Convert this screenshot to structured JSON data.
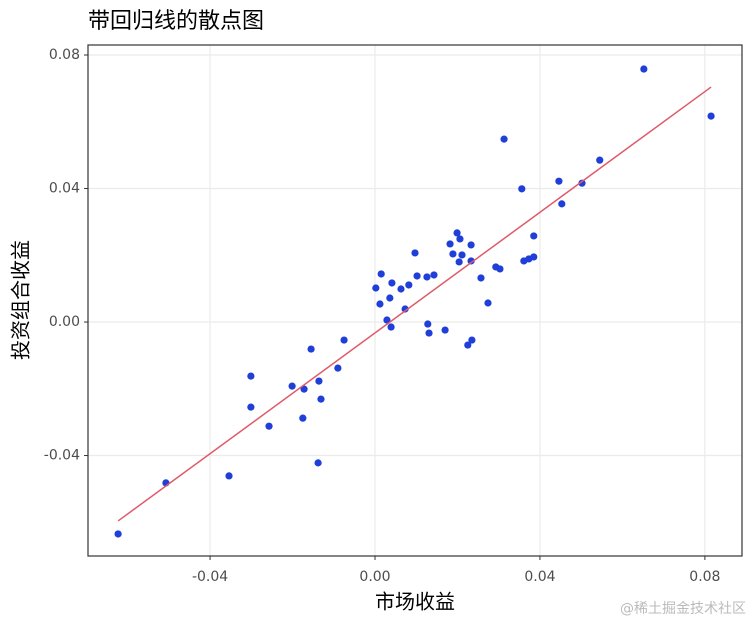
{
  "chart_data": {
    "type": "scatter",
    "title": "带回归线的散点图",
    "x_label": "市场收益",
    "y_label": "投资组合收益",
    "watermark": "@稀土掘金技术社区",
    "xlim": [
      -0.0696,
      0.089
    ],
    "ylim": [
      -0.0701,
      0.083
    ],
    "xticks": [
      -0.04,
      {
        "value": 0,
        "label": "0.00"
      },
      0.04,
      0.08
    ],
    "yticks": [
      -0.04,
      {
        "value": 0,
        "label": "0.00"
      },
      0.04,
      0.08
    ],
    "grid": true,
    "series": [
      {
        "color": "#1f3fd8",
        "x": [
          -0.0623,
          -0.0507,
          -0.0354,
          -0.0301,
          -0.0301,
          -0.0257,
          -0.0201,
          -0.0172,
          -0.0175,
          -0.0155,
          -0.0136,
          -0.0131,
          -0.0138,
          -0.009,
          -0.0075,
          0.0002,
          0.0012,
          0.0015,
          0.0029,
          0.0036,
          0.0039,
          0.0041,
          0.0063,
          0.0073,
          0.0082,
          0.0097,
          0.0102,
          0.0126,
          0.0128,
          0.0131,
          0.0143,
          0.017,
          0.0182,
          0.0189,
          0.0199,
          0.0206,
          0.0204,
          0.0211,
          0.0225,
          0.0233,
          0.0233,
          0.0235,
          0.0257,
          0.0274,
          0.0293,
          0.0303,
          0.0313,
          0.0356,
          0.0361,
          0.0373,
          0.0385,
          0.0385,
          0.0446,
          0.0453,
          0.0502,
          0.0545,
          0.0652,
          0.0815
        ],
        "values": [
          -0.0635,
          -0.0482,
          -0.0461,
          -0.0162,
          -0.0255,
          -0.0312,
          -0.0192,
          -0.0201,
          -0.0288,
          -0.0081,
          -0.0177,
          -0.0231,
          -0.0422,
          -0.0138,
          -0.0054,
          0.0102,
          0.0054,
          0.0144,
          0.0006,
          0.0072,
          -0.0015,
          0.0117,
          0.0099,
          0.0039,
          0.0111,
          0.0207,
          0.0138,
          0.0135,
          -0.0006,
          -0.0033,
          0.0141,
          -0.0024,
          0.0234,
          0.0204,
          0.0267,
          0.0249,
          0.018,
          0.0201,
          -0.0069,
          0.0183,
          0.0231,
          -0.0054,
          0.0132,
          0.0057,
          0.0165,
          0.0159,
          0.0548,
          0.0399,
          0.0183,
          0.0189,
          0.0258,
          0.0195,
          0.0422,
          0.0354,
          0.0416,
          0.0485,
          0.0758,
          0.0617
        ]
      }
    ],
    "fit": {
      "color": "#e05a6a",
      "x": [
        -0.0623,
        0.0815
      ],
      "values": [
        -0.0596,
        0.0704
      ]
    }
  }
}
